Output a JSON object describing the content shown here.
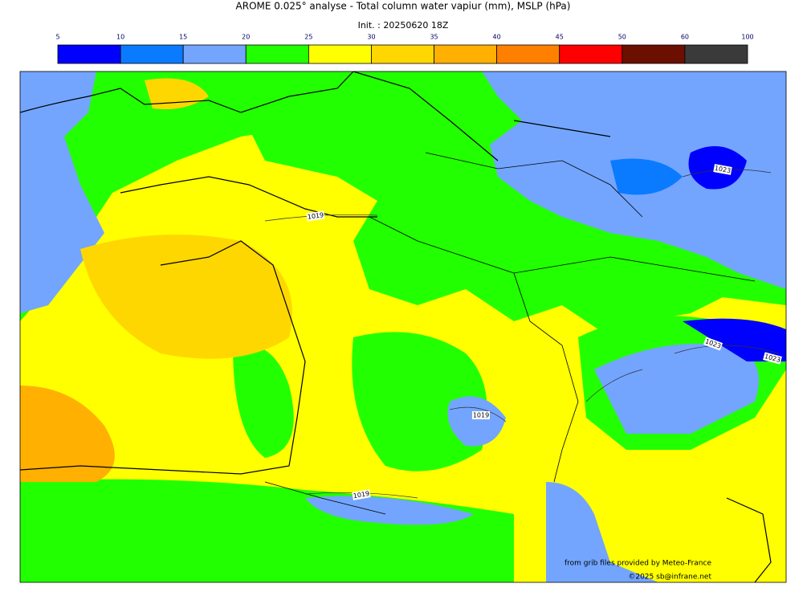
{
  "header": {
    "title": "AROME 0.025° analyse - Total column water vapiur (mm), MSLP (hPa)",
    "subtitle": "Init. : 20250620 18Z"
  },
  "colorbar": {
    "ticks": [
      5,
      10,
      15,
      20,
      25,
      30,
      35,
      40,
      45,
      50,
      60,
      100
    ],
    "colors": [
      "#0000ff",
      "#0a7bff",
      "#73a5ff",
      "#22ff00",
      "#ffff00",
      "#ffd700",
      "#ffb000",
      "#ff8000",
      "#ff0000",
      "#6b0f00",
      "#3a3a3a"
    ]
  },
  "isobar_labels": [
    "1019",
    "1023",
    "1019",
    "1019",
    "1023",
    "1023"
  ],
  "credits": [
    "from grib files provided by Meteo-France",
    "©2025 sb@infrane.net"
  ]
}
